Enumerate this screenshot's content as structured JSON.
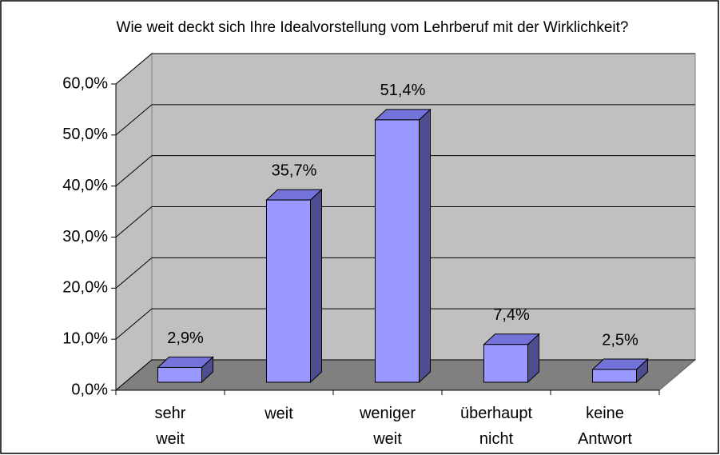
{
  "chart_data": {
    "type": "bar3d",
    "title": "Wie weit deckt sich Ihre Idealvorstellung vom Lehrberuf mit der Wirklichkeit?",
    "categories": [
      "sehr weit",
      "weit",
      "weniger weit",
      "überhaupt nicht",
      "keine Antwort"
    ],
    "values": [
      2.9,
      35.7,
      51.4,
      7.4,
      2.5
    ],
    "value_labels": [
      "2,9%",
      "35,7%",
      "51,4%",
      "7,4%",
      "2,5%"
    ],
    "color": "#9999ff",
    "ylim": [
      0,
      60
    ],
    "yticks": [
      {
        "value": 0,
        "label": "0,0%"
      },
      {
        "value": 10,
        "label": "10,0%"
      },
      {
        "value": 20,
        "label": "20,0%"
      },
      {
        "value": 30,
        "label": "30,0%"
      },
      {
        "value": 40,
        "label": "40,0%"
      },
      {
        "value": 50,
        "label": "50,0%"
      },
      {
        "value": 60,
        "label": "60,0%"
      }
    ],
    "grid": true
  }
}
